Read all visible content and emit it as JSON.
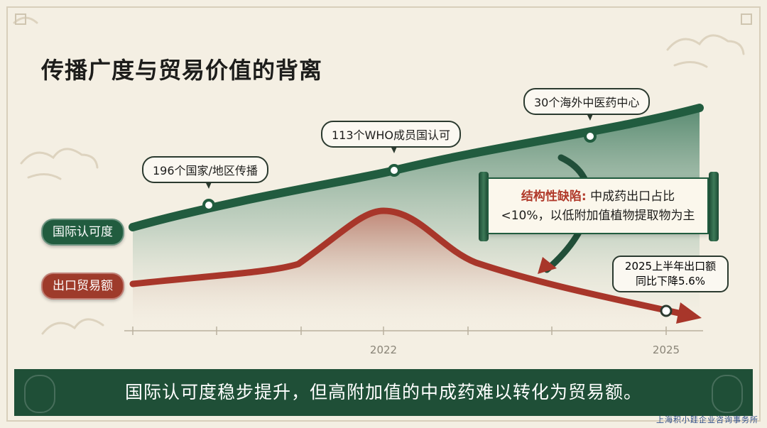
{
  "title": "传播广度与贸易价值的背离",
  "legend": {
    "recognition": "国际认可度",
    "export": "出口贸易额"
  },
  "callouts": {
    "countries": "196个国家/地区传播",
    "who": "113个WHO成员国认可",
    "centers": "30个海外中医药中心"
  },
  "scroll_note": {
    "label": "结构性缺陷:",
    "line1_rest": " 中成药出口占比",
    "line2": "<10%，以低附加值植物提取物为主"
  },
  "note_2025": {
    "line1": "2025上半年出口额",
    "line2": "同比下降5.6%"
  },
  "banner": "国际认可度稳步提升，但高附加值的中成药难以转化为贸易额。",
  "watermark": "上海积小跬企业咨询事务所",
  "colors": {
    "recognition": "#215c3f",
    "export": "#a8362a",
    "background": "#f4efe3"
  },
  "chart_data": {
    "type": "line",
    "title": "传播广度与贸易价值的背离",
    "x_tick_labels": [
      "2022",
      "2025"
    ],
    "grid": false,
    "series": [
      {
        "name": "国际认可度",
        "trend": "steadily rising",
        "milestones": [
          "196个国家/地区传播",
          "113个WHO成员国认可",
          "30个海外中医药中心"
        ]
      },
      {
        "name": "出口贸易额",
        "trend": "peak around 2022, then decline through 2025",
        "milestones": [
          "2025上半年出口额同比下降5.6%"
        ]
      }
    ]
  }
}
